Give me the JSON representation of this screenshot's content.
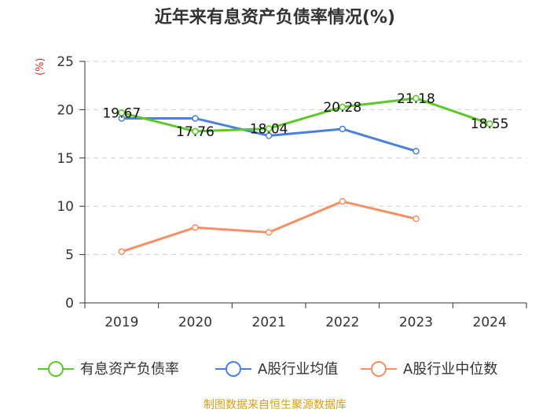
{
  "chart_data": {
    "type": "line",
    "title": "近年来有息资产负债率情况(%)",
    "ylabel": "(%)",
    "xlabel": "",
    "categories": [
      "2019",
      "2020",
      "2021",
      "2022",
      "2023",
      "2024"
    ],
    "ylim": [
      0,
      25
    ],
    "yticks": [
      0,
      5,
      10,
      15,
      20,
      25
    ],
    "series": [
      {
        "name": "有息资产负债率",
        "color": "#5cc82a",
        "values": [
          19.67,
          17.76,
          18.04,
          20.28,
          21.18,
          18.55
        ],
        "labels": [
          "19.67",
          "17.76",
          "18.04",
          "20.28",
          "21.18",
          "18.55"
        ]
      },
      {
        "name": "A股行业均值",
        "color": "#4a80dc",
        "values": [
          19.1,
          19.1,
          17.3,
          18.0,
          15.7,
          null
        ]
      },
      {
        "name": "A股行业中位数",
        "color": "#f59066",
        "values": [
          5.3,
          7.8,
          7.3,
          10.5,
          8.7,
          null
        ]
      }
    ],
    "legend_position": "bottom",
    "grid": true
  },
  "footer": "制图数据来自恒生聚源数据库"
}
